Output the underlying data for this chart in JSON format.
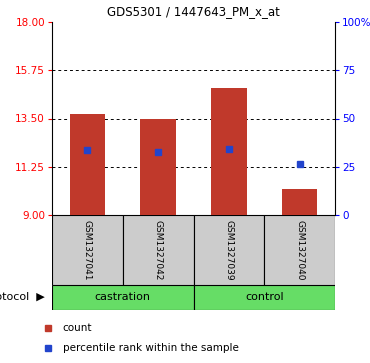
{
  "title": "GDS5301 / 1447643_PM_x_at",
  "samples": [
    "GSM1327041",
    "GSM1327042",
    "GSM1327039",
    "GSM1327040"
  ],
  "bar_tops": [
    13.73,
    13.48,
    14.93,
    10.22
  ],
  "bar_bottoms": [
    9.0,
    9.0,
    9.0,
    9.0
  ],
  "percentile_values": [
    12.05,
    11.92,
    12.1,
    11.38
  ],
  "bar_color": "#c0392b",
  "blue_color": "#2244cc",
  "ylim_left": [
    9,
    18
  ],
  "yticks_left": [
    9,
    11.25,
    13.5,
    15.75,
    18
  ],
  "yticks_right_vals": [
    0,
    25,
    50,
    75,
    100
  ],
  "yticks_right_labels": [
    "0",
    "25",
    "50",
    "75",
    "100%"
  ],
  "grid_lines": [
    11.25,
    13.5,
    15.75
  ],
  "protocol_color": "#66dd66",
  "sample_box_color": "#cccccc",
  "background_color": "#ffffff",
  "legend_red_label": "count",
  "legend_blue_label": "percentile rank within the sample",
  "protocol_label": "protocol"
}
